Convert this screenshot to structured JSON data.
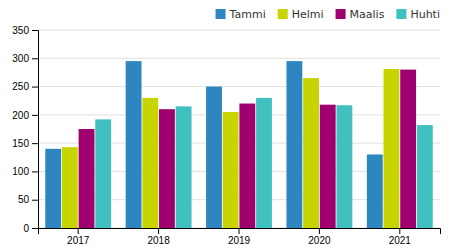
{
  "chart_data": {
    "type": "bar",
    "categories": [
      "2017",
      "2018",
      "2019",
      "2020",
      "2021"
    ],
    "series": [
      {
        "name": "Tammi",
        "color": "#2E86C1",
        "values": [
          140,
          295,
          250,
          295,
          130
        ]
      },
      {
        "name": "Helmi",
        "color": "#C8D400",
        "values": [
          143,
          230,
          205,
          265,
          281
        ]
      },
      {
        "name": "Maalis",
        "color": "#A0006E",
        "values": [
          175,
          210,
          220,
          218,
          280
        ]
      },
      {
        "name": "Huhti",
        "color": "#40C0C0",
        "values": [
          192,
          215,
          230,
          217,
          182
        ]
      }
    ],
    "ylim": [
      0,
      350
    ],
    "yticks": [
      0,
      50,
      100,
      150,
      200,
      250,
      300,
      350
    ],
    "grid": true,
    "legend": "upper right"
  }
}
